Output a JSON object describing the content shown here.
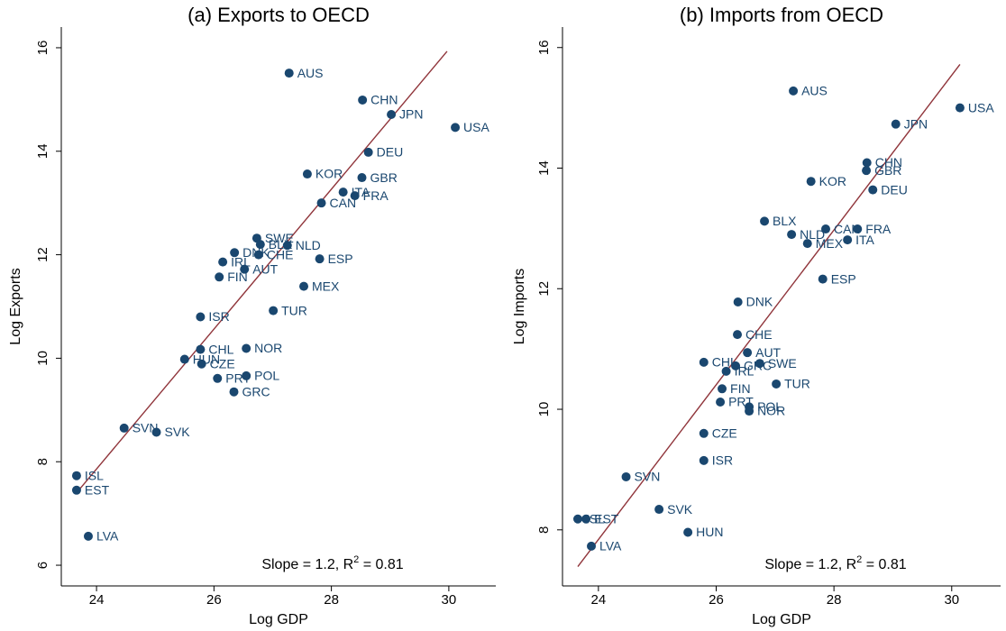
{
  "chart_data": [
    {
      "type": "scatter",
      "title": "(a) Exports to OECD",
      "x_label": "Log GDP",
      "y_label": "Log Exports",
      "xlim": [
        23.4,
        30.8
      ],
      "ylim": [
        5.6,
        16.4
      ],
      "xticks": [
        24,
        26,
        28,
        30
      ],
      "yticks": [
        6,
        8,
        10,
        12,
        14,
        16
      ],
      "color": "#1a476f",
      "labels": [
        "AUS",
        "CHN",
        "JPN",
        "USA",
        "DEU",
        "KOR",
        "GBR",
        "ITA",
        "FRA",
        "CAN",
        "SWE",
        "BLX",
        "NLD",
        "DNK",
        "CHE",
        "ESP",
        "IRL",
        "AUT",
        "FIN",
        "MEX",
        "TUR",
        "ISR",
        "NOR",
        "CHL",
        "HUN",
        "CZE",
        "POL",
        "PRT",
        "GRC",
        "SVN",
        "SVK",
        "ISL",
        "EST",
        "LVA"
      ],
      "x": [
        27.28,
        28.53,
        29.02,
        30.11,
        28.63,
        27.59,
        28.52,
        28.2,
        28.4,
        27.83,
        26.73,
        26.79,
        27.25,
        26.35,
        26.76,
        27.8,
        26.15,
        26.52,
        26.09,
        27.53,
        27.01,
        25.77,
        26.55,
        25.77,
        25.5,
        25.79,
        26.55,
        26.06,
        26.34,
        24.47,
        25.02,
        23.66,
        23.66,
        23.86
      ],
      "values": [
        15.51,
        14.99,
        14.71,
        14.46,
        13.98,
        13.56,
        13.49,
        13.21,
        13.14,
        13.0,
        12.32,
        12.2,
        12.18,
        12.04,
        12.0,
        11.92,
        11.86,
        11.72,
        11.57,
        11.39,
        10.92,
        10.8,
        10.19,
        10.17,
        9.98,
        9.89,
        9.66,
        9.61,
        9.35,
        8.65,
        8.57,
        7.73,
        7.45,
        6.56
      ],
      "fit_line": {
        "color": "#90353b",
        "x": [
          23.66,
          29.97
        ],
        "values": [
          7.4,
          15.93
        ]
      },
      "annotation": [
        "Slope = 1.2, R",
        "2",
        " = 0.81"
      ]
    },
    {
      "type": "scatter",
      "title": "(b) Imports from OECD",
      "x_label": "Log GDP",
      "y_label": "Log Imports",
      "xlim": [
        23.39,
        30.83
      ],
      "ylim": [
        7.07,
        16.34
      ],
      "xticks": [
        24,
        26,
        28,
        30
      ],
      "yticks": [
        8,
        10,
        12,
        14,
        16
      ],
      "color": "#1a476f",
      "labels": [
        "AUS",
        "USA",
        "JPN",
        "CHN",
        "GBR",
        "KOR",
        "DEU",
        "BLX",
        "CAN",
        "FRA",
        "NLD",
        "ITA",
        "MEX",
        "ESP",
        "DNK",
        "CHE",
        "AUT",
        "CHL",
        "SWE",
        "GRC",
        "IRL",
        "TUR",
        "FIN",
        "PRT",
        "POL",
        "NOR",
        "CZE",
        "ISR",
        "SVN",
        "SVK",
        "HUN",
        "ISL",
        "EST",
        "LVA"
      ],
      "x": [
        27.31,
        30.14,
        29.05,
        28.56,
        28.55,
        27.61,
        28.66,
        26.82,
        27.86,
        28.4,
        27.28,
        28.23,
        27.55,
        27.81,
        26.37,
        26.36,
        26.53,
        25.79,
        26.74,
        26.33,
        26.17,
        27.02,
        26.1,
        26.07,
        26.56,
        26.56,
        25.79,
        25.79,
        24.47,
        25.03,
        25.52,
        23.65,
        23.79,
        23.88
      ],
      "values": [
        15.28,
        15.0,
        14.73,
        14.09,
        13.96,
        13.78,
        13.64,
        13.12,
        12.99,
        12.99,
        12.9,
        12.81,
        12.75,
        12.16,
        11.78,
        11.24,
        10.94,
        10.78,
        10.76,
        10.72,
        10.63,
        10.42,
        10.34,
        10.12,
        10.04,
        9.97,
        9.6,
        9.15,
        8.88,
        8.34,
        7.96,
        8.18,
        8.18,
        7.73
      ],
      "fit_line": {
        "color": "#90353b",
        "x": [
          23.65,
          30.14
        ],
        "values": [
          7.39,
          15.72
        ]
      },
      "annotation": [
        "Slope = 1.2, R",
        "2",
        " = 0.81"
      ]
    }
  ]
}
